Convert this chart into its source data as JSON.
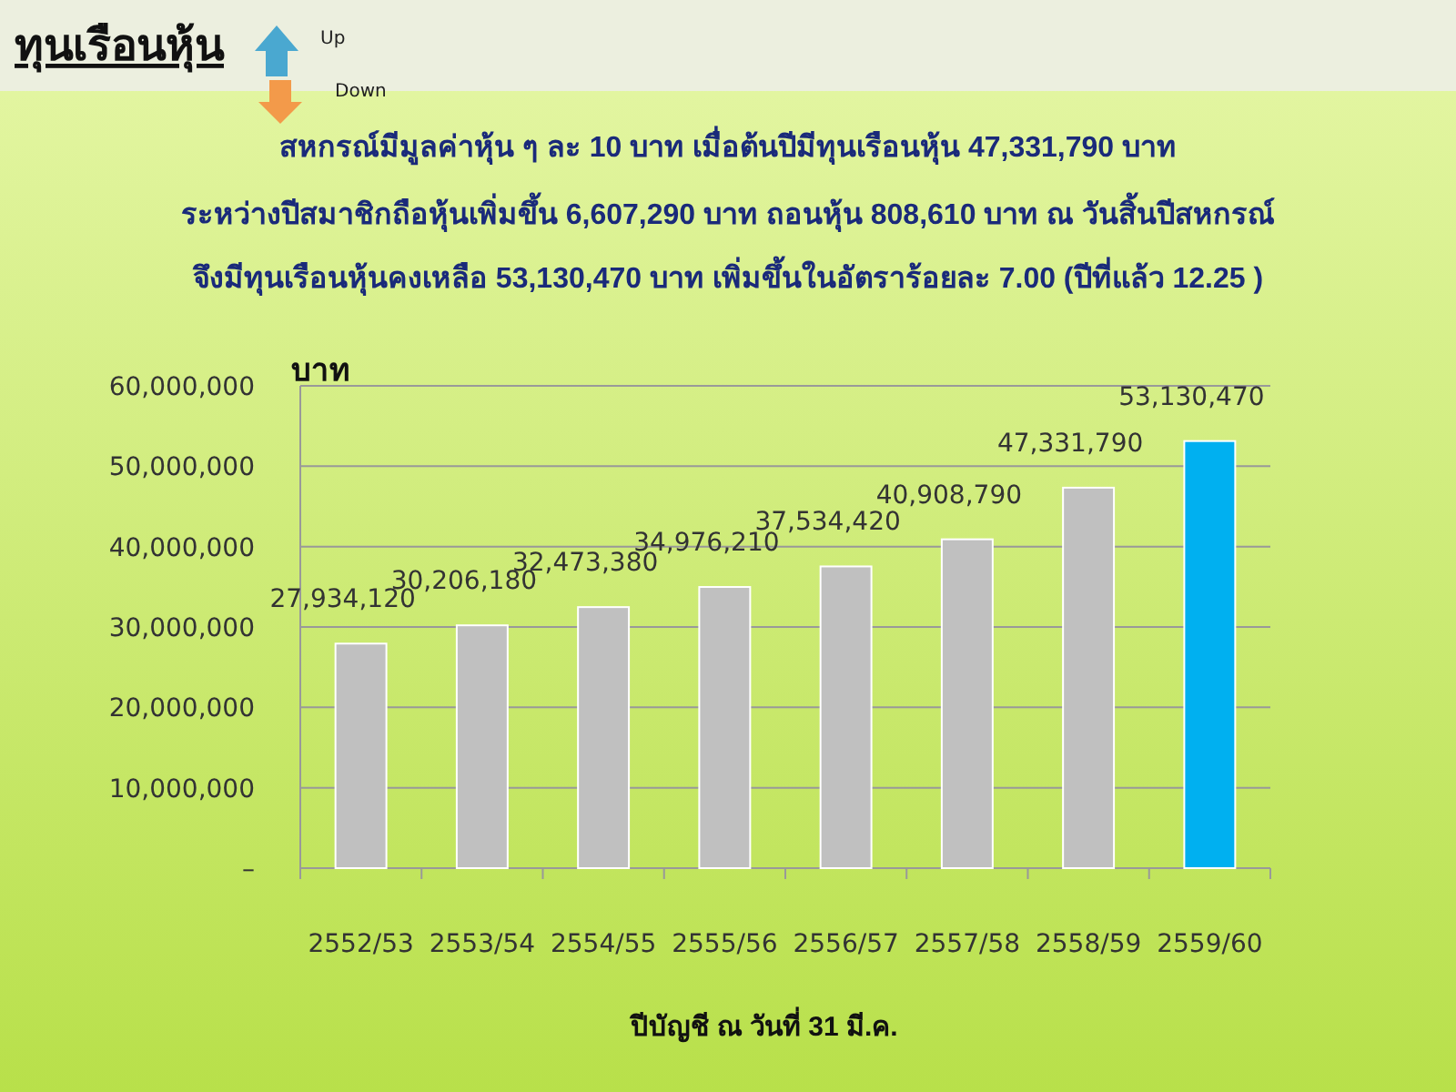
{
  "chart_data": {
    "type": "bar",
    "title": "ทุนเรือนหุ้น",
    "annotations": [
      "Up",
      "Down",
      "สหกรณ์มีมูลค่าหุ้น ๆ ละ 10 บาท เมื่อต้นปีมีทุนเรือนหุ้น  47,331,790  บาท",
      "ระหว่างปีสมาชิกถือหุ้นเพิ่มขึ้น 6,607,290  บาท ถอนหุ้น 808,610  บาท  ณ วันสิ้นปีสหกรณ์",
      "จึงมีทุนเรือนหุ้นคงเหลือ 53,130,470 บาท เพิ่มขึ้นในอัตราร้อยละ  7.00 (ปีที่แล้ว  12.25  )"
    ],
    "ylabel": "บาท",
    "xlabel": "ปีบัญชี ณ วันที่ 31 มี.ค.",
    "categories": [
      "2552/53",
      "2553/54",
      "2554/55",
      "2555/56",
      "2556/57",
      "2557/58",
      "2558/59",
      "2559/60"
    ],
    "values": [
      27934120,
      30206180,
      32473380,
      34976210,
      37534420,
      40908790,
      47331790,
      53130470
    ],
    "colors": [
      "#c0c0c0",
      "#c0c0c0",
      "#c0c0c0",
      "#c0c0c0",
      "#c0c0c0",
      "#c0c0c0",
      "#c0c0c0",
      "#00b0f0"
    ],
    "value_labels": [
      "27,934,120",
      "30,206,180",
      "32,473,380",
      "34,976,210",
      "37,534,420",
      "40,908,790",
      "47,331,790",
      "53,130,470"
    ],
    "ylim": [
      0,
      60000000
    ],
    "yticks": [
      {
        "value": 0,
        "label": "–"
      },
      {
        "value": 10000000,
        "label": "10,000,000"
      },
      {
        "value": 20000000,
        "label": "20,000,000"
      },
      {
        "value": 30000000,
        "label": "30,000,000"
      },
      {
        "value": 40000000,
        "label": "40,000,000"
      },
      {
        "value": 50000000,
        "label": "50,000,000"
      },
      {
        "value": 60000000,
        "label": "60,000,000"
      }
    ],
    "grid": "y"
  }
}
